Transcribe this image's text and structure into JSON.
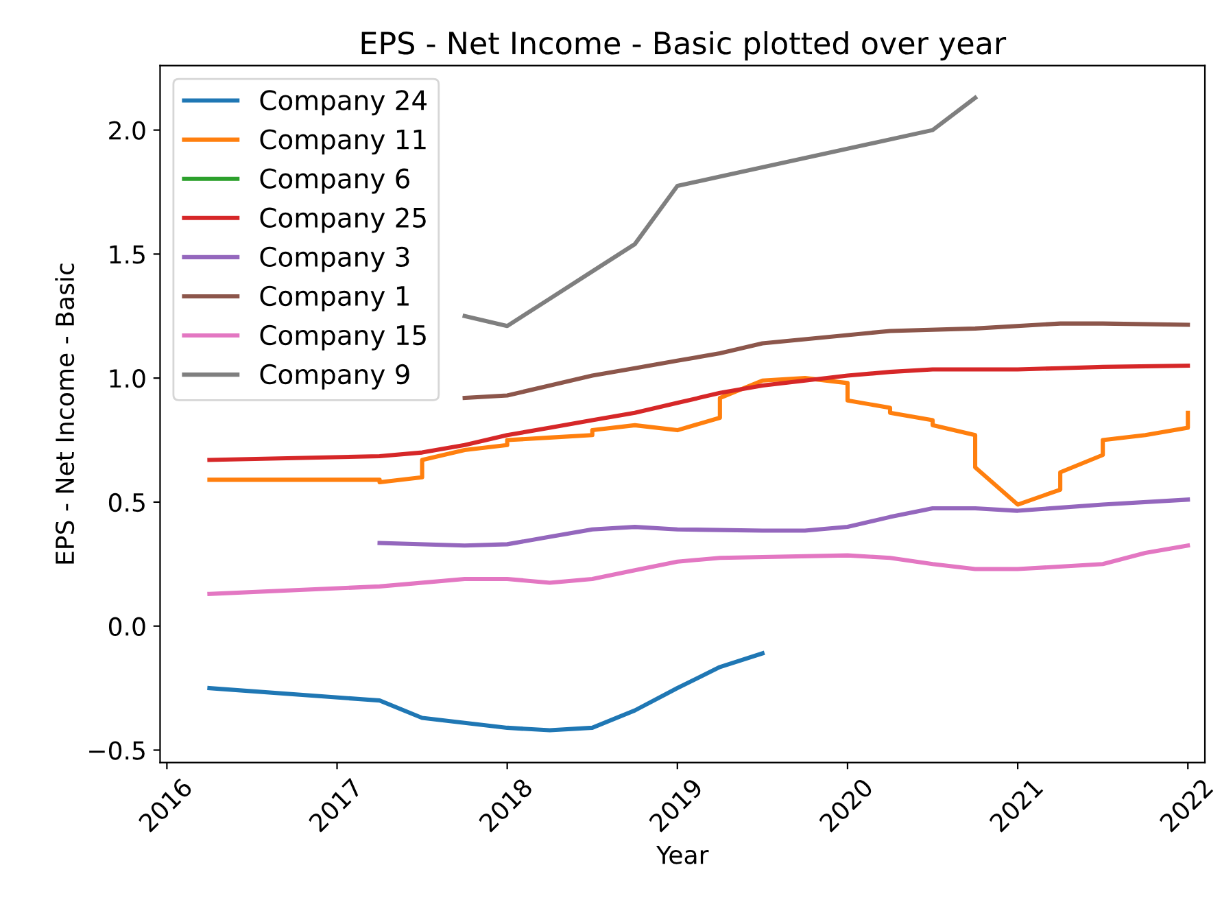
{
  "chart_data": {
    "type": "line",
    "title": "EPS - Net Income - Basic plotted over year",
    "xlabel": "Year",
    "ylabel": "EPS - Net Income - Basic",
    "xlim": [
      2015.96,
      2022.1
    ],
    "ylim": [
      -0.55,
      2.26
    ],
    "xticks": [
      2016,
      2017,
      2018,
      2019,
      2020,
      2021,
      2022
    ],
    "yticks": [
      {
        "value": -0.5,
        "label": "−0.5"
      },
      {
        "value": 0,
        "label": "0.0"
      },
      {
        "value": 0.5,
        "label": "0.5"
      },
      {
        "value": 1,
        "label": "1.0"
      },
      {
        "value": 1.5,
        "label": "1.5"
      },
      {
        "value": 2,
        "label": "2.0"
      }
    ],
    "grid": false,
    "legend": "top left",
    "marker": "none",
    "line_style": "solid",
    "series": [
      {
        "name": "Company 24",
        "color": "#1f77b4",
        "x": [
          2016.25,
          2017.25,
          2017.5,
          2017.75,
          2018,
          2018.25,
          2018.5,
          2018.75,
          2019,
          2019.25,
          2019.5
        ],
        "values": [
          -0.25,
          -0.3,
          -0.37,
          -0.39,
          -0.41,
          -0.42,
          -0.41,
          -0.34,
          -0.25,
          -0.165,
          -0.11
        ]
      },
      {
        "name": "Company 11",
        "color": "#ff7f0e",
        "x": [
          2016.25,
          2017.25,
          2017.25,
          2017.5,
          2017.5,
          2017.75,
          2018,
          2018,
          2018.25,
          2018.5,
          2018.5,
          2018.75,
          2019,
          2019.25,
          2019.25,
          2019.5,
          2019.75,
          2020,
          2020,
          2020.25,
          2020.25,
          2020.5,
          2020.5,
          2020.75,
          2020.75,
          2021,
          2021.25,
          2021.25,
          2021.5,
          2021.5,
          2021.75,
          2022,
          2022
        ],
        "values": [
          0.59,
          0.59,
          0.58,
          0.6,
          0.67,
          0.71,
          0.73,
          0.75,
          0.76,
          0.77,
          0.79,
          0.81,
          0.79,
          0.84,
          0.92,
          0.99,
          1.0,
          0.98,
          0.91,
          0.88,
          0.86,
          0.83,
          0.81,
          0.77,
          0.64,
          0.49,
          0.55,
          0.62,
          0.69,
          0.75,
          0.77,
          0.8,
          0.86
        ]
      },
      {
        "name": "Company 6",
        "color": "#2ca02c"
      },
      {
        "name": "Company 25",
        "color": "#d62728",
        "x": [
          2016.25,
          2017.25,
          2017.5,
          2017.75,
          2018,
          2018.25,
          2018.5,
          2018.75,
          2019,
          2019.25,
          2019.5,
          2019.75,
          2020,
          2020.25,
          2020.5,
          2021,
          2021.25,
          2021.5,
          2022
        ],
        "values": [
          0.67,
          0.685,
          0.7,
          0.73,
          0.77,
          0.8,
          0.83,
          0.86,
          0.9,
          0.94,
          0.97,
          0.99,
          1.01,
          1.025,
          1.035,
          1.035,
          1.04,
          1.045,
          1.05
        ]
      },
      {
        "name": "Company 3",
        "color": "#9467bd",
        "x": [
          2017.25,
          2017.75,
          2018,
          2018.25,
          2018.5,
          2018.75,
          2019,
          2019.5,
          2019.75,
          2020,
          2020.25,
          2020.5,
          2020.75,
          2021,
          2021.5,
          2022
        ],
        "values": [
          0.335,
          0.325,
          0.33,
          0.36,
          0.39,
          0.4,
          0.39,
          0.385,
          0.385,
          0.4,
          0.44,
          0.475,
          0.475,
          0.465,
          0.49,
          0.51
        ]
      },
      {
        "name": "Company 1",
        "color": "#8c564b",
        "x": [
          2017.75,
          2018,
          2018.25,
          2018.5,
          2018.75,
          2019,
          2019.25,
          2019.5,
          2020.25,
          2020.75,
          2021.25,
          2021.5,
          2022
        ],
        "values": [
          0.92,
          0.93,
          0.97,
          1.01,
          1.04,
          1.07,
          1.1,
          1.14,
          1.19,
          1.2,
          1.22,
          1.22,
          1.215
        ]
      },
      {
        "name": "Company 15",
        "color": "#e377c2",
        "x": [
          2016.25,
          2017.25,
          2017.75,
          2018,
          2018.25,
          2018.5,
          2018.75,
          2019,
          2019.25,
          2020,
          2020.25,
          2020.5,
          2020.75,
          2021,
          2021.5,
          2021.75,
          2022
        ],
        "values": [
          0.13,
          0.16,
          0.19,
          0.19,
          0.175,
          0.19,
          0.225,
          0.26,
          0.275,
          0.285,
          0.275,
          0.25,
          0.23,
          0.23,
          0.25,
          0.295,
          0.325
        ]
      },
      {
        "name": "Company 9",
        "color": "#7f7f7f",
        "x": [
          2017.75,
          2018,
          2018.25,
          2018.5,
          2018.75,
          2019,
          2020.5,
          2020.75
        ],
        "values": [
          1.25,
          1.21,
          1.32,
          1.43,
          1.54,
          1.775,
          2.0,
          2.13
        ]
      }
    ]
  }
}
